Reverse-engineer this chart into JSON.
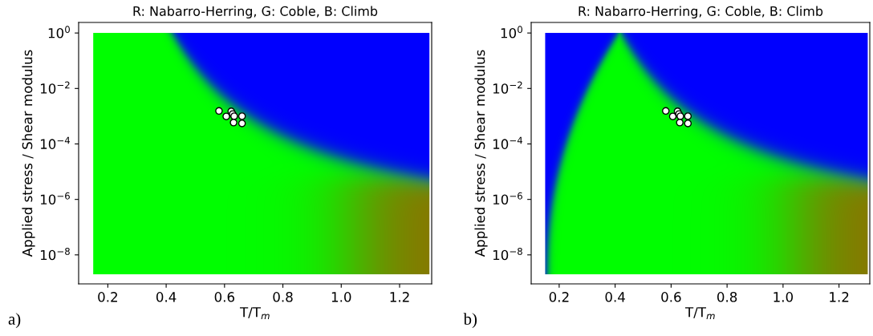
{
  "chart_data": [
    {
      "type": "scatter",
      "title": "R: Nabarro-Herring, G: Coble, B: Climb",
      "xlabel": "T/T$_{m}$",
      "ylabel": "Applied stress / Shear modulus",
      "annotations": [
        "a)"
      ],
      "log": "y",
      "marker": "circle",
      "grid": false,
      "x": [
        0.581,
        0.606,
        0.623,
        0.628,
        0.633,
        0.66,
        0.631,
        0.66
      ],
      "series": [
        {
          "color": "#ffffff",
          "values": [
            0.00155,
            0.00098,
            0.0015,
            0.0012,
            0.001,
            0.001,
            0.00059,
            0.00055
          ]
        }
      ],
      "xlim": [
        0.1,
        1.31
      ],
      "ylim": [
        9e-10,
        2.4
      ],
      "xticks": [
        0.2,
        0.4,
        0.6,
        0.8,
        {
          "value": 1.0,
          "label": "1.0"
        },
        1.2
      ],
      "yticks": [
        {
          "value": 1e-08,
          "label": "10$^{−8}$"
        },
        {
          "value": 1e-06,
          "label": "10$^{−6}$"
        },
        {
          "value": 0.0001,
          "label": "10$^{−4}$"
        },
        {
          "value": 0.01,
          "label": "10$^{−2}$"
        },
        {
          "value": 1,
          "label": "10$^{0}$"
        }
      ]
    },
    {
      "type": "scatter",
      "title": "R: Nabarro-Herring, G: Coble, B: Climb",
      "xlabel": "T/T$_{m}$",
      "ylabel": "Applied stress / Shear modulus",
      "annotations": [
        "b)"
      ],
      "log": "y",
      "marker": "circle",
      "grid": false,
      "x": [
        0.581,
        0.606,
        0.623,
        0.628,
        0.633,
        0.66,
        0.631,
        0.66
      ],
      "series": [
        {
          "color": "#ffffff",
          "values": [
            0.00155,
            0.00098,
            0.0015,
            0.0012,
            0.001,
            0.001,
            0.00059,
            0.00055
          ]
        }
      ],
      "xlim": [
        0.1,
        1.31
      ],
      "ylim": [
        9e-10,
        2.4
      ],
      "xticks": [
        0.2,
        0.4,
        0.6,
        0.8,
        {
          "value": 1.0,
          "label": "1.0"
        },
        1.2
      ],
      "yticks": [
        {
          "value": 1e-08,
          "label": "10$^{−8}$"
        },
        {
          "value": 1e-06,
          "label": "10$^{−6}$"
        },
        {
          "value": 0.0001,
          "label": "10$^{−4}$"
        },
        {
          "value": 0.01,
          "label": "10$^{−2}$"
        },
        {
          "value": 1,
          "label": "10$^{0}$"
        }
      ]
    }
  ]
}
